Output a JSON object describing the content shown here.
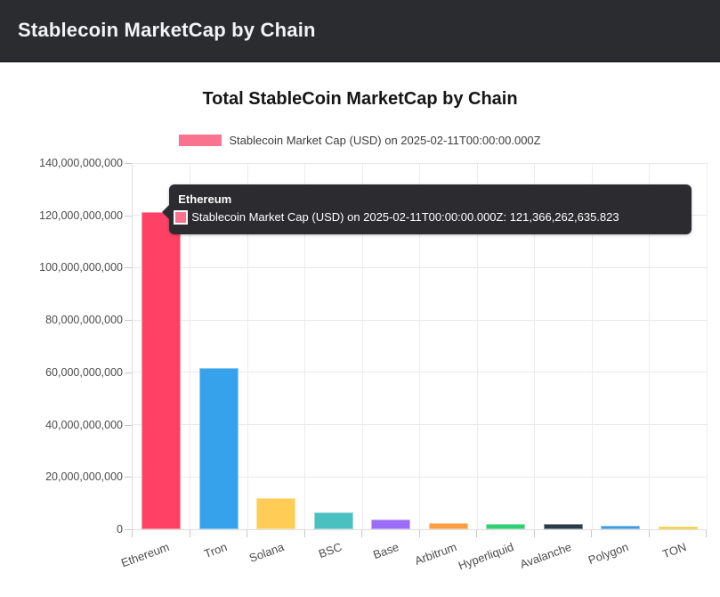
{
  "header": {
    "title": "Stablecoin MarketCap by Chain"
  },
  "chart_data": {
    "type": "bar",
    "title": "Total StableCoin MarketCap by Chain",
    "legend": {
      "label": "Stablecoin Market Cap (USD) on 2025-02-11T00:00:00.000Z",
      "swatch_color": "#f9738e",
      "position": "top"
    },
    "categories": [
      "Ethereum",
      "Tron",
      "Solana",
      "BSC",
      "Base",
      "Arbitrum",
      "Hyperliquid",
      "Avalanche",
      "Polygon",
      "TON"
    ],
    "series": [
      {
        "name": "Stablecoin Market Cap (USD) on 2025-02-11T00:00:00.000Z",
        "values": [
          121366262635.823,
          61600000000,
          11900000000,
          6500000000,
          3700000000,
          2400000000,
          2100000000,
          1900000000,
          1400000000,
          1000000000
        ]
      }
    ],
    "bar_colors": [
      "#fe4164",
      "#36a2eb",
      "#ffcd56",
      "#4bc0c0",
      "#9b6df6",
      "#fb9e45",
      "#2fcf74",
      "#2c3a47",
      "#3d9ce1",
      "#f2c51d"
    ],
    "xlabel": "",
    "ylabel": "",
    "ylim": [
      0,
      140000000000
    ],
    "grid": true,
    "y_ticks": [
      {
        "value": 0,
        "label": "0"
      },
      {
        "value": 20000000000,
        "label": "20,000,000,000"
      },
      {
        "value": 40000000000,
        "label": "40,000,000,000"
      },
      {
        "value": 60000000000,
        "label": "60,000,000,000"
      },
      {
        "value": 80000000000,
        "label": "80,000,000,000"
      },
      {
        "value": 100000000000,
        "label": "100,000,000,000"
      },
      {
        "value": 120000000000,
        "label": "120,000,000,000"
      },
      {
        "value": 140000000000,
        "label": "140,000,000,000"
      }
    ],
    "tooltip": {
      "title": "Ethereum",
      "line": "Stablecoin Market Cap (USD) on 2025-02-11T00:00:00.000Z: 121,366,262,635.823",
      "swatch_color": "#f9738e",
      "anchor_category": "Ethereum"
    }
  }
}
